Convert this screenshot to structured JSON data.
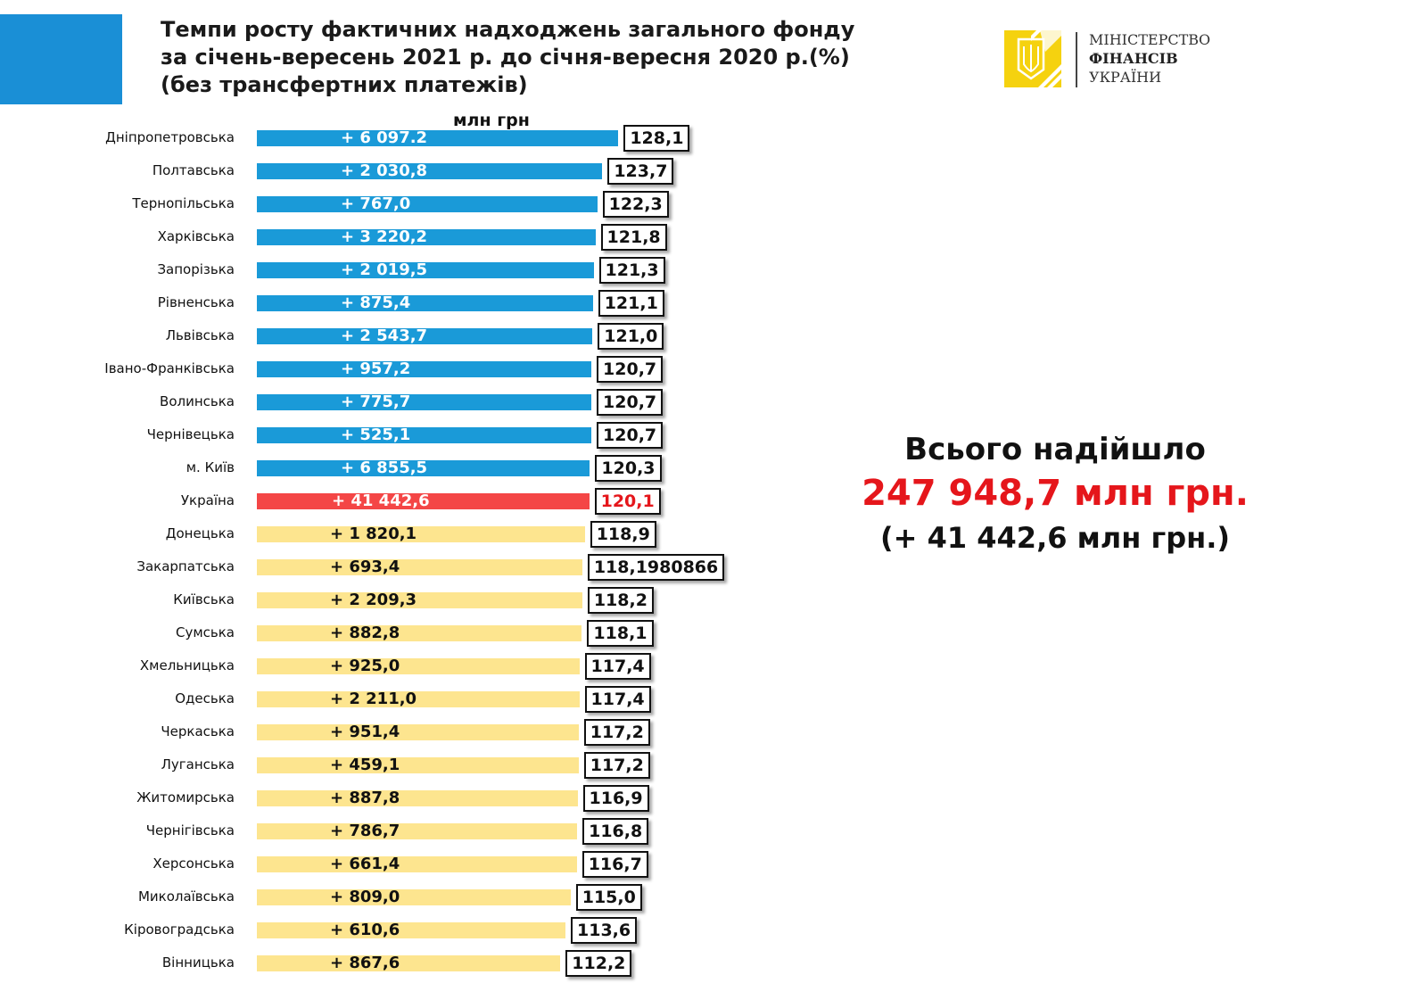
{
  "header": {
    "title_lines": [
      "Темпи росту фактичних надходжень загального фонду",
      "за січень-вересень 2021 р. до січня-вересня 2020 р.(%)",
      "(без трансфертних платежів)"
    ],
    "logo": {
      "line1": "МІНІСТЕРСТВО",
      "line2": "ФІНАНСІВ",
      "line3": "УКРАЇНИ"
    }
  },
  "summary": {
    "line1": "Всього надійшло",
    "line2": "247 948,7 млн грн.",
    "line3": "(+ 41 442,6 млн грн.)"
  },
  "colors": {
    "above": "#1a9ad8",
    "ukraine": "#f44646",
    "below": "#fde58f",
    "highlight_text": "#e5161b"
  },
  "chart_data": {
    "type": "bar",
    "orientation": "horizontal",
    "title": "Темпи росту фактичних надходжень загального фонду за січень-вересень 2021 р. до січня-вересня 2020 р.(%) (без трансфертних платежів)",
    "unit_label": "млн грн",
    "xlim": [
      29,
      130
    ],
    "categories": [
      "Дніпропетровська",
      "Полтавська",
      "Тернопільська",
      "Харківська",
      "Запорізька",
      "Рівненська",
      "Львівська",
      "Івано-Франківська",
      "Волинська",
      "Чернівецька",
      "м. Київ",
      "Україна",
      "Донецька",
      "Закарпатська",
      "Київська",
      "Сумська",
      "Хмельницька",
      "Одеська",
      "Черкаська",
      "Луганська",
      "Житомирська",
      "Чернігівська",
      "Херсонська",
      "Миколаївська",
      "Кіровоградська",
      "Вінницька"
    ],
    "values": [
      128.1,
      123.7,
      122.3,
      121.8,
      121.3,
      121.1,
      121.0,
      120.7,
      120.7,
      120.7,
      120.3,
      120.1,
      118.9,
      118.1980866,
      118.2,
      118.1,
      117.4,
      117.4,
      117.2,
      117.2,
      116.9,
      116.8,
      116.7,
      115.0,
      113.6,
      112.2
    ],
    "value_labels": [
      "128,1",
      "123,7",
      "122,3",
      "121,8",
      "121,3",
      "121,1",
      "121,0",
      "120,7",
      "120,7",
      "120,7",
      "120,3",
      "120,1",
      "118,9",
      "118,1980866",
      "118,2",
      "118,1",
      "117,4",
      "117,4",
      "117,2",
      "117,2",
      "116,9",
      "116,8",
      "116,7",
      "115,0",
      "113,6",
      "112,2"
    ],
    "increase_labels": [
      "+ 6 097.2",
      "+ 2 030,8",
      "+ 767,0",
      "+ 3 220,2",
      "+ 2 019,5",
      "+ 875,4",
      "+ 2 543,7",
      "+ 957,2",
      "+ 775,7",
      "+ 525,1",
      "+ 6 855,5",
      "+ 41 442,6",
      "+ 1 820,1",
      "+ 693,4",
      "+ 2 209,3",
      "+ 882,8",
      "+ 925,0",
      "+ 2 211,0",
      "+ 951,4",
      "+ 459,1",
      "+ 887,8",
      "+ 786,7",
      "+ 661,4",
      "+ 809,0",
      "+ 610,6",
      "+ 867,6"
    ],
    "groups": [
      "above",
      "above",
      "above",
      "above",
      "above",
      "above",
      "above",
      "above",
      "above",
      "above",
      "above",
      "ukraine",
      "below",
      "below",
      "below",
      "below",
      "below",
      "below",
      "below",
      "below",
      "below",
      "below",
      "below",
      "below",
      "below",
      "below"
    ]
  }
}
